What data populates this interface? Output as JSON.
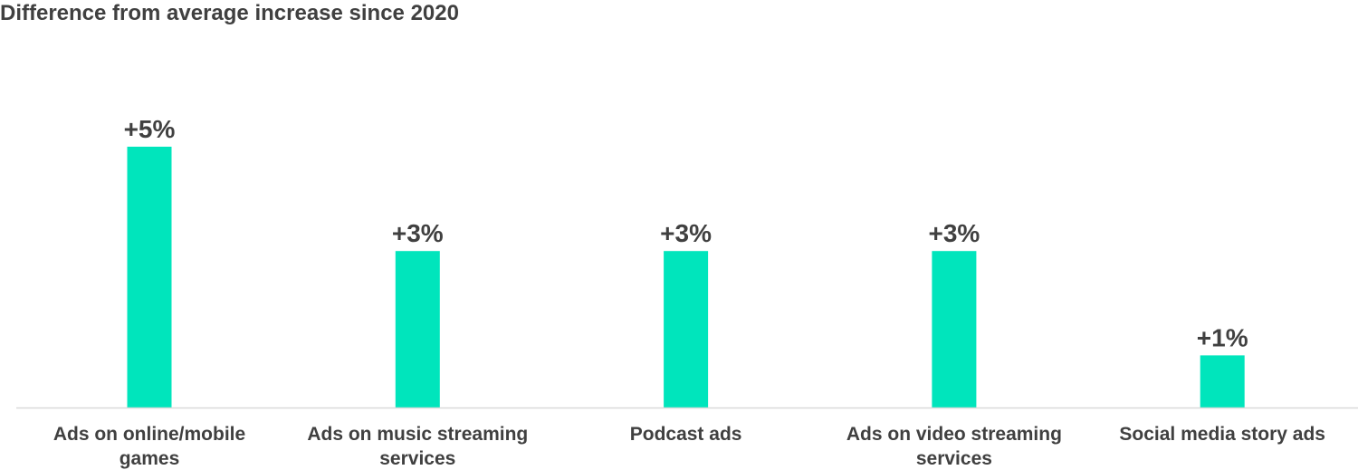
{
  "chart_data": {
    "type": "bar",
    "title": "Difference from average increase since 2020",
    "categories": [
      [
        "Ads on online/mobile",
        "games"
      ],
      [
        "Ads on music streaming",
        "services"
      ],
      [
        "Podcast ads"
      ],
      [
        "Ads on video streaming",
        "services"
      ],
      [
        "Social media story ads"
      ]
    ],
    "values": [
      5,
      3,
      3,
      3,
      1
    ],
    "data_labels": [
      "+5%",
      "+3%",
      "+3%",
      "+3%",
      "+1%"
    ],
    "unit": "%",
    "ylim": [
      0,
      5
    ],
    "grid": false,
    "legend": "none",
    "colors": {
      "bar": "#00E5BC",
      "text": "#404040",
      "axis": "#D9D9D9"
    }
  }
}
